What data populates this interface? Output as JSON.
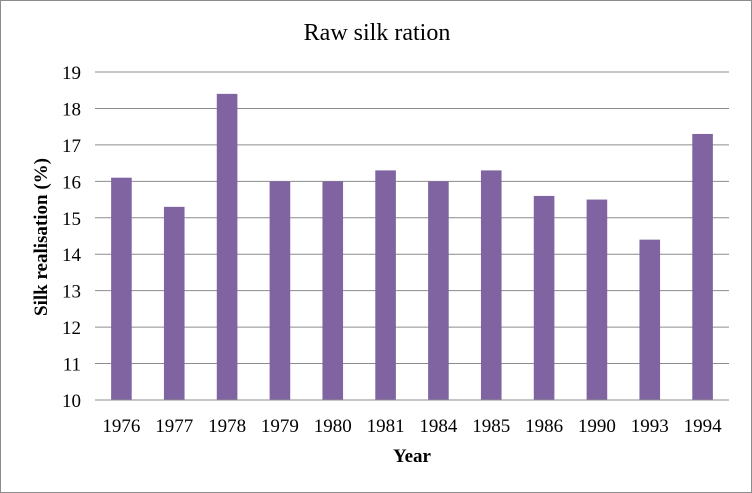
{
  "chart_data": {
    "type": "bar",
    "title": "Raw silk ration",
    "xlabel": "Year",
    "ylabel": "Silk realisation (%)",
    "categories": [
      "1976",
      "1977",
      "1978",
      "1979",
      "1980",
      "1981",
      "1984",
      "1985",
      "1986",
      "1990",
      "1993",
      "1994"
    ],
    "series": [
      {
        "values": [
          16.1,
          15.3,
          18.4,
          16.0,
          16.0,
          16.3,
          16.0,
          16.3,
          15.6,
          15.5,
          14.4,
          17.3
        ]
      }
    ],
    "ylim": [
      10,
      19
    ],
    "yticks": [
      "10",
      "11",
      "12",
      "13",
      "14",
      "15",
      "16",
      "17",
      "18",
      "19"
    ],
    "grid": true,
    "legend": "none",
    "colors": {
      "bar": "#8064a2",
      "grid": "#8c8c8c",
      "text": "#000000"
    }
  }
}
